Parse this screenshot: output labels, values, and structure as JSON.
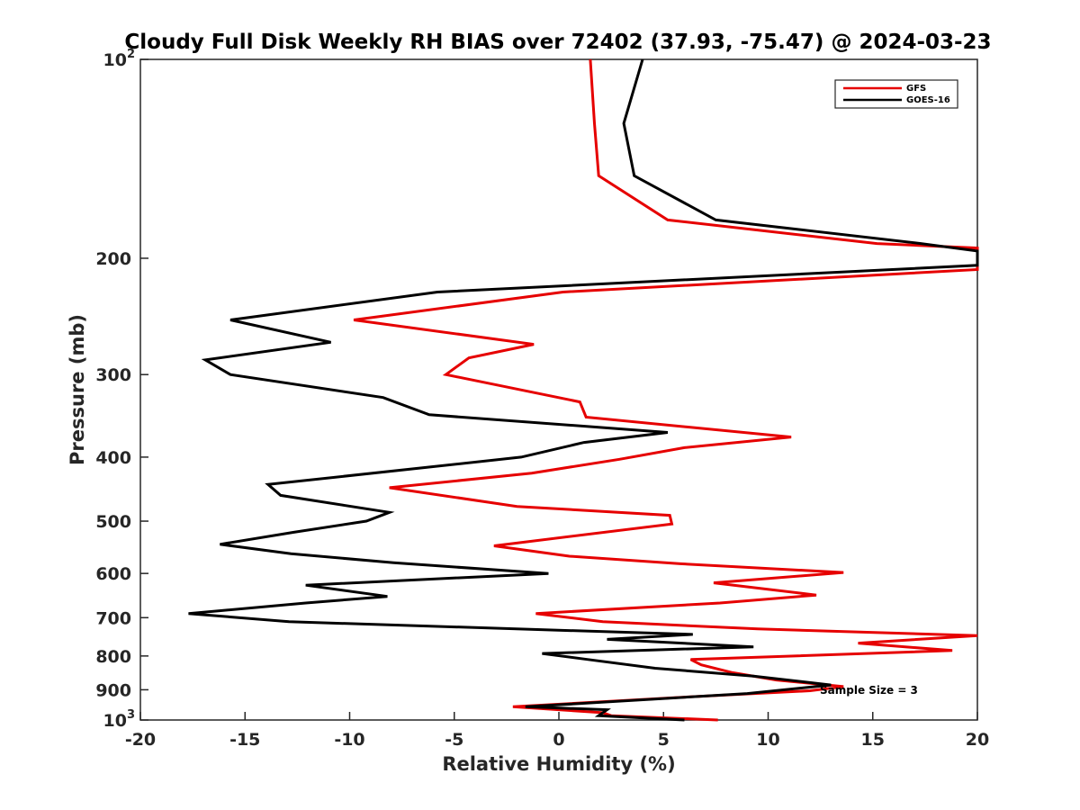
{
  "chart_data": {
    "type": "line",
    "title": "Cloudy Full Disk Weekly RH BIAS over 72402 (37.93, -75.47) @ 2024-03-23",
    "xlabel": "Relative Humidity (%)",
    "ylabel": "Pressure (mb)",
    "xlim": [
      -20,
      20
    ],
    "ylim": [
      100,
      1000
    ],
    "y_scale": "log",
    "y_reversed": true,
    "grid": false,
    "legend_position": "top-right",
    "x_ticks": [
      {
        "value": -20,
        "label": "-20"
      },
      {
        "value": -15,
        "label": "-15"
      },
      {
        "value": -10,
        "label": "-10"
      },
      {
        "value": -5,
        "label": "-5"
      },
      {
        "value": 0,
        "label": "0"
      },
      {
        "value": 5,
        "label": "5"
      },
      {
        "value": 10,
        "label": "10"
      },
      {
        "value": 15,
        "label": "15"
      },
      {
        "value": 20,
        "label": "20"
      }
    ],
    "y_ticks": [
      {
        "value": 100,
        "base": "10",
        "exp": "2"
      },
      {
        "value": 200,
        "label": "200"
      },
      {
        "value": 300,
        "label": "300"
      },
      {
        "value": 400,
        "label": "400"
      },
      {
        "value": 500,
        "label": "500"
      },
      {
        "value": 600,
        "label": "600"
      },
      {
        "value": 700,
        "label": "700"
      },
      {
        "value": 800,
        "label": "800"
      },
      {
        "value": 900,
        "label": "900"
      },
      {
        "value": 1000,
        "base": "10",
        "exp": "3"
      }
    ],
    "annotation": "Sample Size = 3",
    "series": [
      {
        "name": "GFS",
        "color": "#e60000",
        "points": [
          [
            1.5,
            100
          ],
          [
            1.7,
            125
          ],
          [
            1.9,
            150
          ],
          [
            5.2,
            175
          ],
          [
            15.2,
            190
          ],
          [
            20.0,
            193
          ],
          [
            20.0,
            208
          ],
          [
            0.2,
            225
          ],
          [
            -9.8,
            248
          ],
          [
            -1.2,
            270
          ],
          [
            -4.3,
            283
          ],
          [
            -5.4,
            300
          ],
          [
            1.0,
            330
          ],
          [
            1.3,
            348
          ],
          [
            11.1,
            373
          ],
          [
            6.0,
            387
          ],
          [
            2.9,
            403
          ],
          [
            -1.3,
            423
          ],
          [
            -8.1,
            445
          ],
          [
            -2.0,
            475
          ],
          [
            5.3,
            490
          ],
          [
            5.4,
            505
          ],
          [
            -3.1,
            545
          ],
          [
            0.5,
            565
          ],
          [
            5.8,
            580
          ],
          [
            13.6,
            598
          ],
          [
            7.4,
            620
          ],
          [
            12.3,
            647
          ],
          [
            7.7,
            665
          ],
          [
            -1.1,
            690
          ],
          [
            2.1,
            710
          ],
          [
            9.5,
            728
          ],
          [
            20.0,
            745
          ],
          [
            14.3,
            765
          ],
          [
            18.8,
            785
          ],
          [
            6.3,
            810
          ],
          [
            6.8,
            825
          ],
          [
            8.3,
            848
          ],
          [
            10.4,
            870
          ],
          [
            13.6,
            890
          ],
          [
            12.0,
            903
          ],
          [
            5.6,
            925
          ],
          [
            -2.2,
            955
          ],
          [
            2.1,
            975
          ],
          [
            2.5,
            985
          ],
          [
            7.6,
            1000
          ]
        ]
      },
      {
        "name": "GOES-16",
        "color": "#000000",
        "points": [
          [
            4.0,
            100
          ],
          [
            3.1,
            125
          ],
          [
            3.6,
            150
          ],
          [
            7.5,
            175
          ],
          [
            17.3,
            190
          ],
          [
            20.0,
            195
          ],
          [
            20.0,
            205
          ],
          [
            -5.8,
            225
          ],
          [
            -15.7,
            248
          ],
          [
            -10.9,
            268
          ],
          [
            -16.9,
            285
          ],
          [
            -15.7,
            300
          ],
          [
            -8.4,
            325
          ],
          [
            -6.2,
            345
          ],
          [
            5.2,
            367
          ],
          [
            1.2,
            380
          ],
          [
            -1.8,
            400
          ],
          [
            -13.9,
            440
          ],
          [
            -13.3,
            457
          ],
          [
            -8.1,
            485
          ],
          [
            -9.2,
            500
          ],
          [
            -12.7,
            520
          ],
          [
            -16.2,
            542
          ],
          [
            -12.8,
            560
          ],
          [
            -7.9,
            578
          ],
          [
            -0.5,
            600
          ],
          [
            -12.1,
            625
          ],
          [
            -8.2,
            650
          ],
          [
            -12.1,
            665
          ],
          [
            -17.7,
            690
          ],
          [
            -12.9,
            710
          ],
          [
            6.4,
            742
          ],
          [
            2.3,
            755
          ],
          [
            9.3,
            775
          ],
          [
            -0.8,
            793
          ],
          [
            1.4,
            810
          ],
          [
            4.6,
            835
          ],
          [
            9.3,
            858
          ],
          [
            13.0,
            885
          ],
          [
            9.0,
            912
          ],
          [
            -1.6,
            955
          ],
          [
            2.3,
            965
          ],
          [
            1.9,
            985
          ],
          [
            6.0,
            1000
          ]
        ]
      }
    ]
  }
}
